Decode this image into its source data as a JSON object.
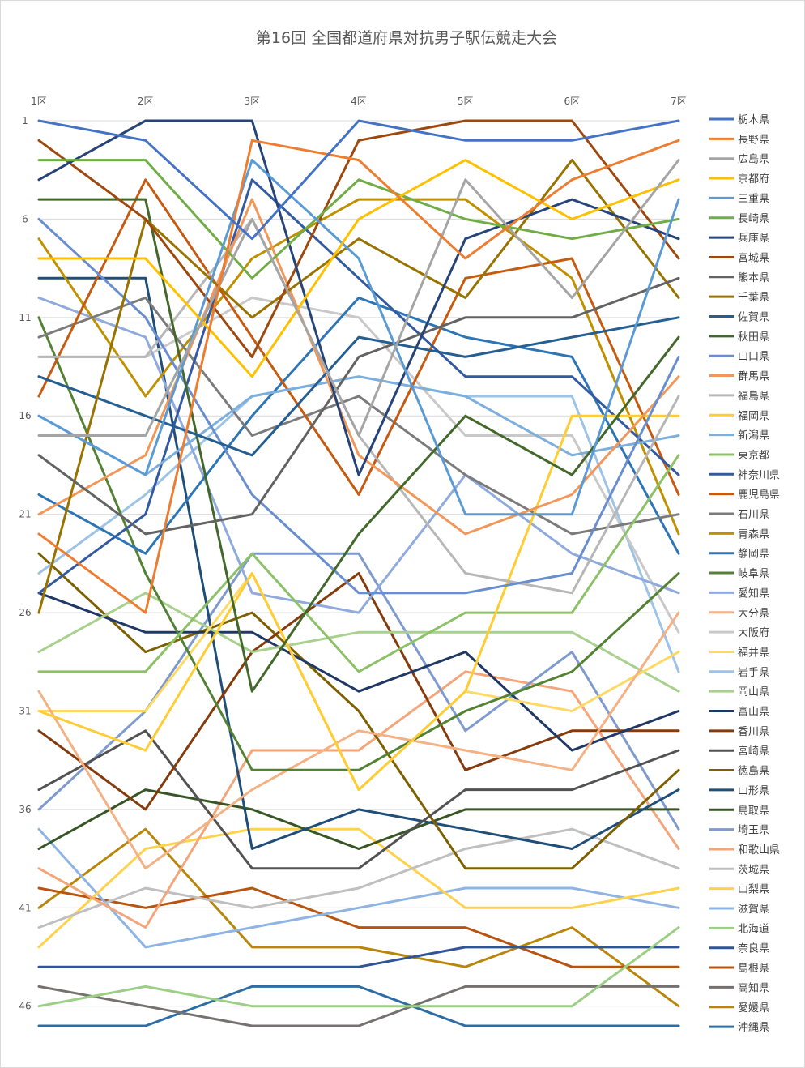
{
  "chart_data": {
    "type": "line",
    "title": "第16回 全国都道府県対抗男子駅伝競走大会",
    "xlabel": "",
    "ylabel": "",
    "categories": [
      "1区",
      "2区",
      "3区",
      "4区",
      "5区",
      "6区",
      "7区"
    ],
    "y_ticks": [
      "1",
      "6",
      "11",
      "16",
      "21",
      "26",
      "31",
      "36",
      "41",
      "46"
    ],
    "ylim": [
      1,
      47
    ],
    "y_reversed": true,
    "grid": true,
    "legend_position": "right",
    "series": [
      {
        "name": "栃木県",
        "color": "#4472c4",
        "values": [
          1,
          2,
          7,
          1,
          2,
          2,
          1
        ]
      },
      {
        "name": "長野県",
        "color": "#ed7d31",
        "values": [
          22,
          26,
          2,
          3,
          8,
          4,
          2
        ]
      },
      {
        "name": "広島県",
        "color": "#a5a5a5",
        "values": [
          17,
          17,
          6,
          17,
          4,
          10,
          3
        ]
      },
      {
        "name": "京都府",
        "color": "#ffc000",
        "values": [
          8,
          8,
          14,
          6,
          3,
          6,
          4
        ]
      },
      {
        "name": "三重県",
        "color": "#5b9bd5",
        "values": [
          16,
          19,
          3,
          8,
          21,
          21,
          5
        ]
      },
      {
        "name": "長崎県",
        "color": "#70ad47",
        "values": [
          3,
          3,
          9,
          4,
          6,
          7,
          6
        ]
      },
      {
        "name": "兵庫県",
        "color": "#264478",
        "values": [
          4,
          1,
          1,
          19,
          7,
          5,
          7
        ]
      },
      {
        "name": "宮城県",
        "color": "#9e480e",
        "values": [
          2,
          6,
          13,
          2,
          1,
          1,
          8
        ]
      },
      {
        "name": "熊本県",
        "color": "#636363",
        "values": [
          18,
          22,
          21,
          13,
          11,
          11,
          9
        ]
      },
      {
        "name": "千葉県",
        "color": "#997300",
        "values": [
          26,
          6,
          11,
          7,
          10,
          3,
          10
        ]
      },
      {
        "name": "佐賀県",
        "color": "#255e91",
        "values": [
          14,
          16,
          18,
          12,
          13,
          12,
          11
        ]
      },
      {
        "name": "秋田県",
        "color": "#43682b",
        "values": [
          5,
          5,
          30,
          22,
          16,
          19,
          12
        ]
      },
      {
        "name": "山口県",
        "color": "#698ed0",
        "values": [
          6,
          11,
          20,
          25,
          25,
          24,
          13
        ]
      },
      {
        "name": "群馬県",
        "color": "#f1975a",
        "values": [
          21,
          18,
          5,
          18,
          22,
          20,
          14
        ]
      },
      {
        "name": "福島県",
        "color": "#b7b7b7",
        "values": [
          13,
          13,
          6,
          17,
          24,
          25,
          15
        ]
      },
      {
        "name": "福岡県",
        "color": "#ffcd33",
        "values": [
          31,
          33,
          24,
          35,
          30,
          16,
          16
        ]
      },
      {
        "name": "新潟県",
        "color": "#7cafdd",
        "values": [
          16,
          19,
          15,
          14,
          15,
          18,
          17
        ]
      },
      {
        "name": "東京都",
        "color": "#8cc168",
        "values": [
          29,
          29,
          23,
          29,
          26,
          26,
          18
        ]
      },
      {
        "name": "神奈川県",
        "color": "#335aa1",
        "values": [
          25,
          21,
          4,
          9,
          14,
          14,
          19
        ]
      },
      {
        "name": "鹿児島県",
        "color": "#c55a11",
        "values": [
          15,
          4,
          12,
          20,
          9,
          8,
          20
        ]
      },
      {
        "name": "石川県",
        "color": "#7b7b7b",
        "values": [
          12,
          10,
          17,
          15,
          19,
          22,
          21
        ]
      },
      {
        "name": "青森県",
        "color": "#bf9000",
        "values": [
          7,
          15,
          8,
          5,
          5,
          9,
          22
        ]
      },
      {
        "name": "静岡県",
        "color": "#2e75b6",
        "values": [
          20,
          23,
          16,
          10,
          12,
          13,
          23
        ]
      },
      {
        "name": "岐阜県",
        "color": "#548235",
        "values": [
          11,
          24,
          34,
          34,
          31,
          29,
          24
        ]
      },
      {
        "name": "愛知県",
        "color": "#8faadc",
        "values": [
          10,
          12,
          25,
          26,
          19,
          23,
          25
        ]
      },
      {
        "name": "大分県",
        "color": "#f4b183",
        "values": [
          30,
          39,
          35,
          32,
          33,
          34,
          26
        ]
      },
      {
        "name": "大阪府",
        "color": "#c9c9c9",
        "values": [
          13,
          13,
          10,
          11,
          17,
          17,
          27
        ]
      },
      {
        "name": "福井県",
        "color": "#ffd966",
        "values": [
          31,
          31,
          24,
          35,
          30,
          31,
          28
        ]
      },
      {
        "name": "岩手県",
        "color": "#9dc3e6",
        "values": [
          24,
          20,
          15,
          14,
          15,
          15,
          29
        ]
      },
      {
        "name": "岡山県",
        "color": "#a9d18e",
        "values": [
          28,
          25,
          28,
          27,
          27,
          27,
          30
        ]
      },
      {
        "name": "富山県",
        "color": "#203864",
        "values": [
          25,
          27,
          27,
          30,
          28,
          33,
          31
        ]
      },
      {
        "name": "香川県",
        "color": "#843c0c",
        "values": [
          32,
          36,
          28,
          24,
          34,
          32,
          32
        ]
      },
      {
        "name": "宮崎県",
        "color": "#525252",
        "values": [
          35,
          32,
          39,
          39,
          35,
          35,
          33
        ]
      },
      {
        "name": "徳島県",
        "color": "#7f6000",
        "values": [
          23,
          28,
          26,
          31,
          39,
          39,
          34
        ]
      },
      {
        "name": "山形県",
        "color": "#1f4e79",
        "values": [
          9,
          9,
          38,
          36,
          37,
          38,
          35
        ]
      },
      {
        "name": "鳥取県",
        "color": "#375623",
        "values": [
          38,
          35,
          36,
          38,
          36,
          36,
          36
        ]
      },
      {
        "name": "埼玉県",
        "color": "#7f9acc",
        "values": [
          36,
          31,
          23,
          23,
          32,
          28,
          37
        ]
      },
      {
        "name": "和歌山県",
        "color": "#f4a57a",
        "values": [
          39,
          42,
          33,
          33,
          29,
          30,
          38
        ]
      },
      {
        "name": "茨城県",
        "color": "#bfbfbf",
        "values": [
          42,
          40,
          41,
          40,
          38,
          37,
          39
        ]
      },
      {
        "name": "山梨県",
        "color": "#ffd24d",
        "values": [
          43,
          38,
          37,
          37,
          41,
          41,
          40
        ]
      },
      {
        "name": "滋賀県",
        "color": "#8eb4e3",
        "values": [
          37,
          43,
          42,
          41,
          40,
          40,
          41
        ]
      },
      {
        "name": "北海道",
        "color": "#9ccf85",
        "values": [
          46,
          45,
          46,
          46,
          46,
          46,
          42
        ]
      },
      {
        "name": "奈良県",
        "color": "#2f5597",
        "values": [
          44,
          44,
          44,
          44,
          43,
          43,
          43
        ]
      },
      {
        "name": "島根県",
        "color": "#b85410",
        "values": [
          40,
          41,
          40,
          42,
          42,
          44,
          44
        ]
      },
      {
        "name": "高知県",
        "color": "#767171",
        "values": [
          45,
          46,
          47,
          47,
          45,
          45,
          45
        ]
      },
      {
        "name": "愛媛県",
        "color": "#b8860b",
        "values": [
          41,
          37,
          43,
          43,
          44,
          42,
          46
        ]
      },
      {
        "name": "沖縄県",
        "color": "#2e6da4",
        "values": [
          47,
          47,
          45,
          45,
          47,
          47,
          47
        ]
      }
    ]
  }
}
